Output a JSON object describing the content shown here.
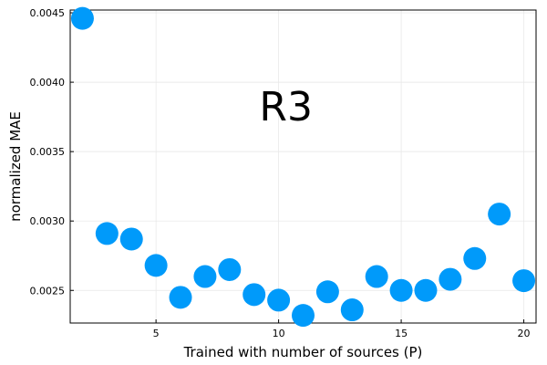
{
  "chart_data": {
    "type": "scatter",
    "title": "",
    "xlabel": "Trained with number of sources (P)",
    "ylabel": "normalized MAE",
    "xlim": [
      1.5,
      20.5
    ],
    "ylim": [
      0.002265,
      0.00452
    ],
    "x_ticks": [
      5,
      10,
      15,
      20
    ],
    "x_tick_labels": [
      "5",
      "10",
      "15",
      "20"
    ],
    "y_ticks": [
      0.0025,
      0.003,
      0.0035,
      0.004,
      0.0045
    ],
    "y_tick_labels": [
      "0.0025",
      "0.0030",
      "0.0035",
      "0.0040",
      "0.0045"
    ],
    "grid": true,
    "legend": "none",
    "marker_color": "#009AFA",
    "annotation": {
      "text": "R3",
      "x": 10.3,
      "y": 0.00383
    },
    "x": [
      2,
      3,
      4,
      5,
      6,
      7,
      8,
      9,
      10,
      11,
      12,
      13,
      14,
      15,
      16,
      17,
      18,
      19,
      20
    ],
    "y": [
      0.00446,
      0.00291,
      0.00287,
      0.00268,
      0.00245,
      0.0026,
      0.00265,
      0.00247,
      0.00243,
      0.00232,
      0.00249,
      0.00236,
      0.0026,
      0.0025,
      0.0025,
      0.00258,
      0.00273,
      0.00305,
      0.00257
    ]
  }
}
